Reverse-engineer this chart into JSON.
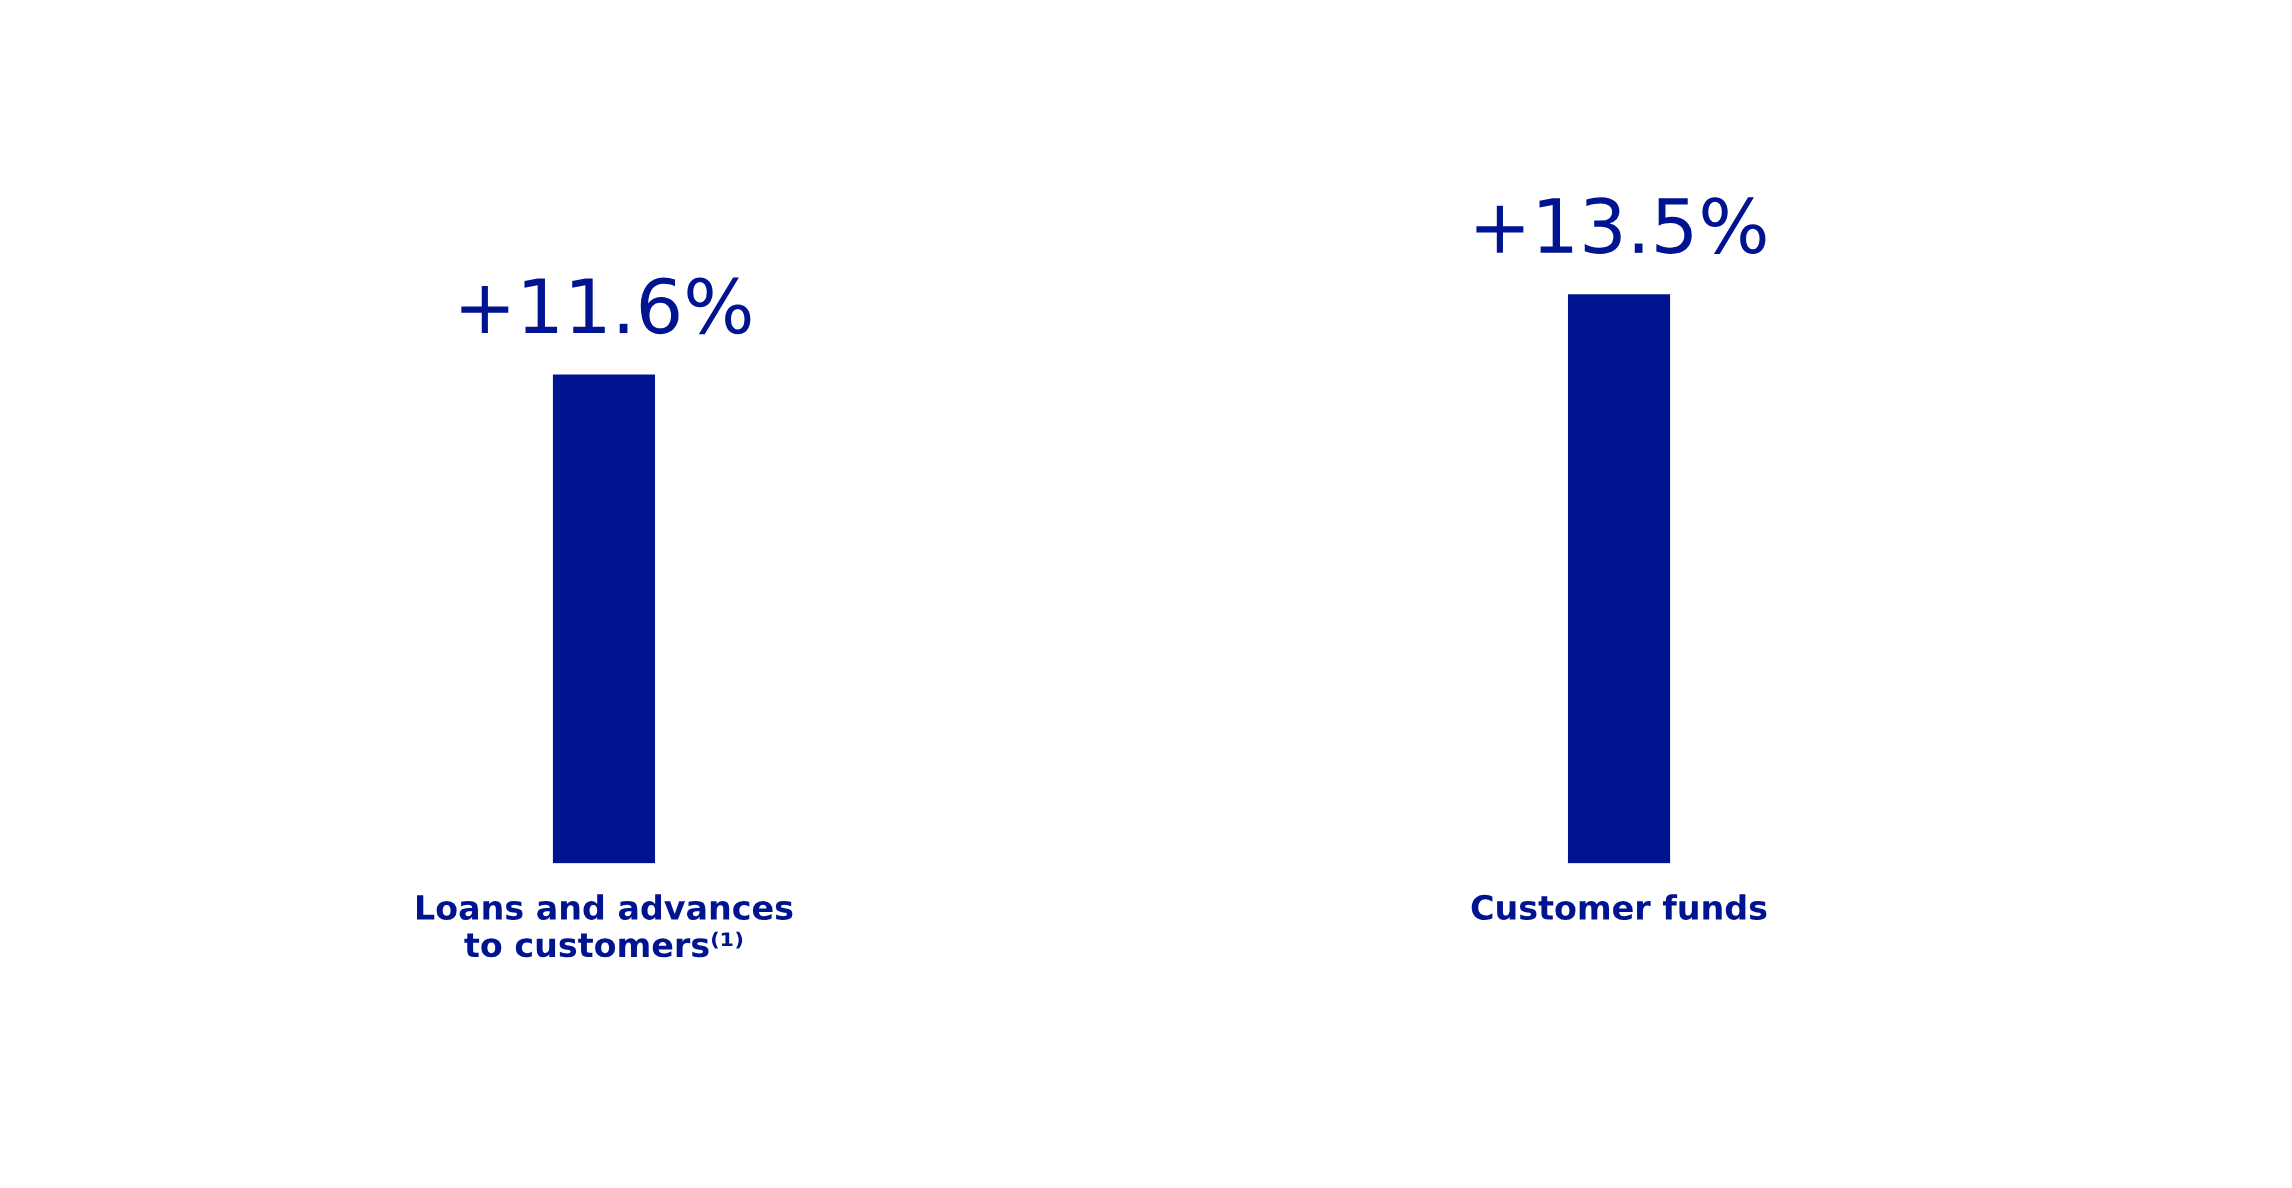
{
  "chart_data": {
    "type": "bar",
    "categories": [
      "Loans and advances\nto customers⁽¹⁾",
      "Customer funds"
    ],
    "values": [
      11.6,
      13.5
    ],
    "value_labels": [
      "+11.6%",
      "+13.5%"
    ],
    "color": "#001391",
    "grid": false,
    "legend": false
  }
}
